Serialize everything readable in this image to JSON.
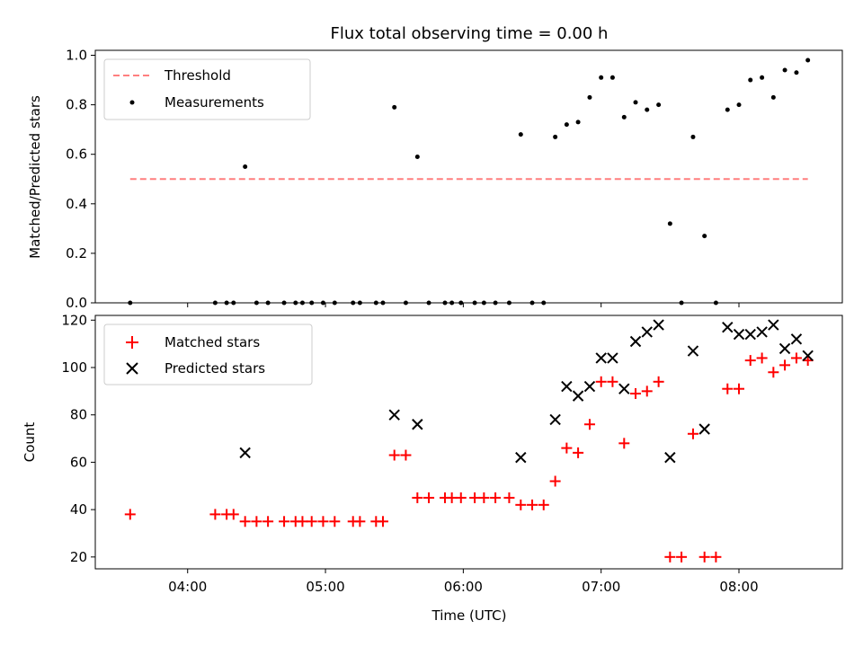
{
  "chart_data": [
    {
      "type": "scatter",
      "title": "Flux total observing time = 0.00 h",
      "ylabel": "Matched/Predicted stars",
      "xlabel": "",
      "xlim_hours": [
        3.33,
        8.75
      ],
      "ylim": [
        0,
        1.02
      ],
      "yticks": [
        "0.0",
        "0.2",
        "0.4",
        "0.6",
        "0.8",
        "1.0"
      ],
      "yticks_values": [
        0,
        0.2,
        0.4,
        0.6,
        0.8,
        1.0
      ],
      "legend": {
        "threshold": "Threshold",
        "measurements": "Measurements",
        "position": "top-left"
      },
      "threshold": {
        "value": 0.5,
        "x_start": 3.583,
        "x_end": 8.5,
        "color": "#ff7f7f"
      },
      "series": [
        {
          "name": "Measurements",
          "color": "#000000",
          "x": [
            3.583,
            4.2,
            4.283,
            4.333,
            4.417,
            4.5,
            4.583,
            4.7,
            4.783,
            4.833,
            4.9,
            4.983,
            5.067,
            5.2,
            5.25,
            5.367,
            5.417,
            5.5,
            5.583,
            5.667,
            5.75,
            5.867,
            5.917,
            5.983,
            6.083,
            6.15,
            6.233,
            6.333,
            6.417,
            6.5,
            6.583,
            6.667,
            6.75,
            6.833,
            6.917,
            7.0,
            7.083,
            7.167,
            7.25,
            7.333,
            7.417,
            7.5,
            7.583,
            7.667,
            7.75,
            7.833,
            7.917,
            8.0,
            8.083,
            8.167,
            8.25,
            8.333,
            8.417,
            8.5
          ],
          "y": [
            0.0,
            0.0,
            0.0,
            0.0,
            0.55,
            0.0,
            0.0,
            0.0,
            0.0,
            0.0,
            0.0,
            0.0,
            0.0,
            0.0,
            0.0,
            0.0,
            0.0,
            0.79,
            0.0,
            0.59,
            0.0,
            0.0,
            0.0,
            0.0,
            0.0,
            0.0,
            0.0,
            0.0,
            0.68,
            0.0,
            0.0,
            0.67,
            0.72,
            0.73,
            0.83,
            0.91,
            0.91,
            0.75,
            0.81,
            0.78,
            0.8,
            0.32,
            0.0,
            0.67,
            0.27,
            0.0,
            0.78,
            0.8,
            0.9,
            0.91,
            0.83,
            0.94,
            0.93,
            0.98
          ]
        }
      ]
    },
    {
      "type": "scatter",
      "title": "",
      "ylabel": "Count",
      "xlabel": "Time (UTC)",
      "xlim_hours": [
        3.33,
        8.75
      ],
      "ylim": [
        15,
        122
      ],
      "yticks": [
        "20",
        "40",
        "60",
        "80",
        "100",
        "120"
      ],
      "yticks_values": [
        20,
        40,
        60,
        80,
        100,
        120
      ],
      "xticks": [
        "04:00",
        "05:00",
        "06:00",
        "07:00",
        "08:00"
      ],
      "xticks_values": [
        4,
        5,
        6,
        7,
        8
      ],
      "legend": {
        "matched": "Matched stars",
        "predicted": "Predicted stars",
        "position": "top-left"
      },
      "series": [
        {
          "name": "Matched stars",
          "marker": "plus",
          "color": "#ff0000",
          "x": [
            3.583,
            4.2,
            4.283,
            4.333,
            4.417,
            4.5,
            4.583,
            4.7,
            4.783,
            4.833,
            4.9,
            4.983,
            5.067,
            5.2,
            5.25,
            5.367,
            5.417,
            5.5,
            5.583,
            5.667,
            5.75,
            5.867,
            5.917,
            5.983,
            6.083,
            6.15,
            6.233,
            6.333,
            6.417,
            6.5,
            6.583,
            6.667,
            6.75,
            6.833,
            6.917,
            7.0,
            7.083,
            7.167,
            7.25,
            7.333,
            7.417,
            7.5,
            7.583,
            7.667,
            7.75,
            7.833,
            7.917,
            8.0,
            8.083,
            8.167,
            8.25,
            8.333,
            8.417,
            8.5
          ],
          "y": [
            38,
            38,
            38,
            38,
            35,
            35,
            35,
            35,
            35,
            35,
            35,
            35,
            35,
            35,
            35,
            35,
            35,
            63,
            63,
            45,
            45,
            45,
            45,
            45,
            45,
            45,
            45,
            45,
            42,
            42,
            42,
            52,
            66,
            64,
            76,
            94,
            94,
            68,
            89,
            90,
            94,
            20,
            20,
            72,
            20,
            20,
            91,
            91,
            103,
            104,
            98,
            101,
            104,
            103
          ]
        },
        {
          "name": "Predicted stars",
          "marker": "x",
          "color": "#000000",
          "x": [
            4.417,
            5.5,
            5.667,
            6.417,
            6.667,
            6.75,
            6.833,
            6.917,
            7.0,
            7.083,
            7.167,
            7.25,
            7.333,
            7.417,
            7.5,
            7.667,
            7.75,
            7.917,
            8.0,
            8.083,
            8.167,
            8.25,
            8.333,
            8.417,
            8.5
          ],
          "y": [
            64,
            80,
            76,
            62,
            78,
            92,
            88,
            92,
            104,
            104,
            91,
            111,
            115,
            118,
            62,
            107,
            74,
            117,
            114,
            114,
            115,
            118,
            108,
            112,
            105
          ]
        }
      ]
    }
  ]
}
